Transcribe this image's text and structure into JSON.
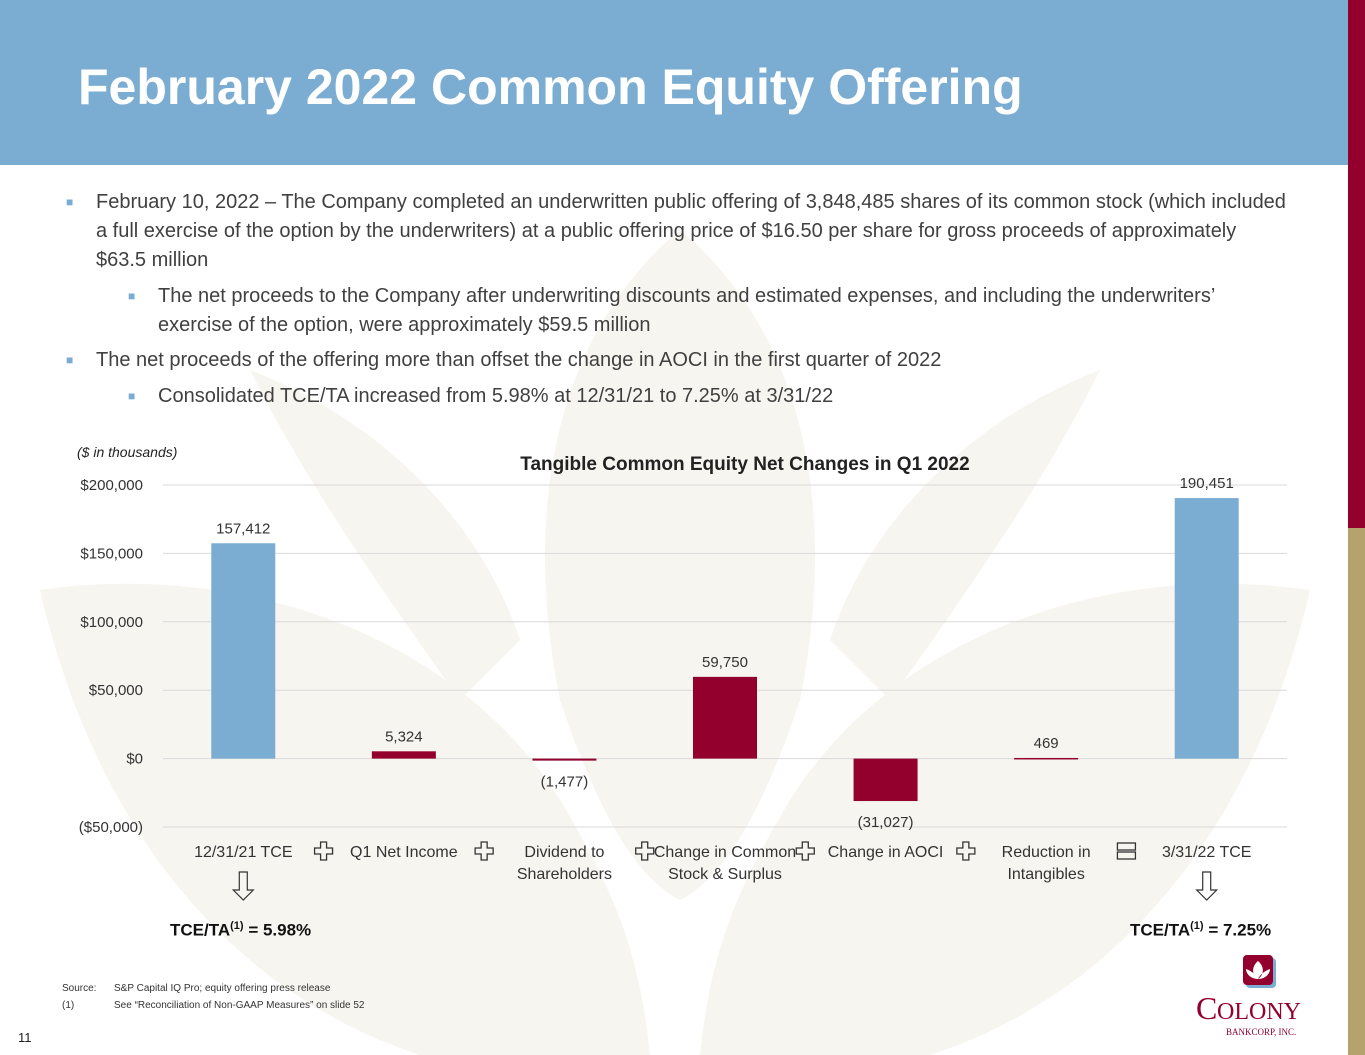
{
  "title": "February 2022 Common Equity Offering",
  "bullets": [
    {
      "level": 1,
      "text": "February 10, 2022 – The Company completed an underwritten public offering of 3,848,485 shares of its common stock (which included a full exercise of the option by the underwriters) at a public offering price of $16.50 per share for gross proceeds of approximately $63.5 million"
    },
    {
      "level": 2,
      "text": "The net proceeds to the Company after underwriting discounts and estimated expenses, and including the underwriters’ exercise of the option, were approximately $59.5 million"
    },
    {
      "level": 1,
      "text": "The net proceeds of the offering more than offset the change in AOCI in the first quarter of 2022"
    },
    {
      "level": 2,
      "text": "Consolidated TCE/TA increased from 5.98% at 12/31/21 to 7.25% at 3/31/22"
    }
  ],
  "units_note": "($ in thousands)",
  "chart_data": {
    "type": "bar",
    "title": "Tangible Common Equity Net Changes in Q1 2022",
    "categories": [
      "12/31/21 TCE",
      "Q1 Net Income",
      "Dividend to Shareholders",
      "Change in Common Stock & Surplus",
      "Change in AOCI",
      "Reduction in Intangibles",
      "3/31/22 TCE"
    ],
    "values": [
      157412,
      5324,
      -1477,
      59750,
      -31027,
      469,
      190451
    ],
    "data_labels": [
      "157,412",
      "5,324",
      "(1,477)",
      "59,750",
      "(31,027)",
      "469",
      "190,451"
    ],
    "bar_types": [
      "total",
      "change",
      "change",
      "change",
      "change",
      "change",
      "total"
    ],
    "operators": [
      "+",
      "+",
      "+",
      "+",
      "+",
      "="
    ],
    "yticks": [
      200000,
      150000,
      100000,
      50000,
      0,
      -50000
    ],
    "ytick_labels": [
      "$200,000",
      "$150,000",
      "$100,000",
      "$50,000",
      "$0",
      "($50,000)"
    ],
    "ylim": [
      -50000,
      200000
    ],
    "grid": true,
    "colors": {
      "total": "#7badd3",
      "change": "#93002e"
    }
  },
  "tce_left": {
    "label": "TCE/TA",
    "sup": "(1)",
    "value": "= 5.98%"
  },
  "tce_right": {
    "label": "TCE/TA",
    "sup": "(1)",
    "value": "= 7.25%"
  },
  "footnotes": [
    {
      "key": "Source:",
      "text": "S&P Capital IQ Pro; equity offering press release"
    },
    {
      "key": "(1)",
      "text": "See “Reconciliation of Non-GAAP Measures” on slide 52"
    }
  ],
  "page_number": "11",
  "logo": {
    "name": "COLONY",
    "sub": "BANKCORP, INC."
  }
}
